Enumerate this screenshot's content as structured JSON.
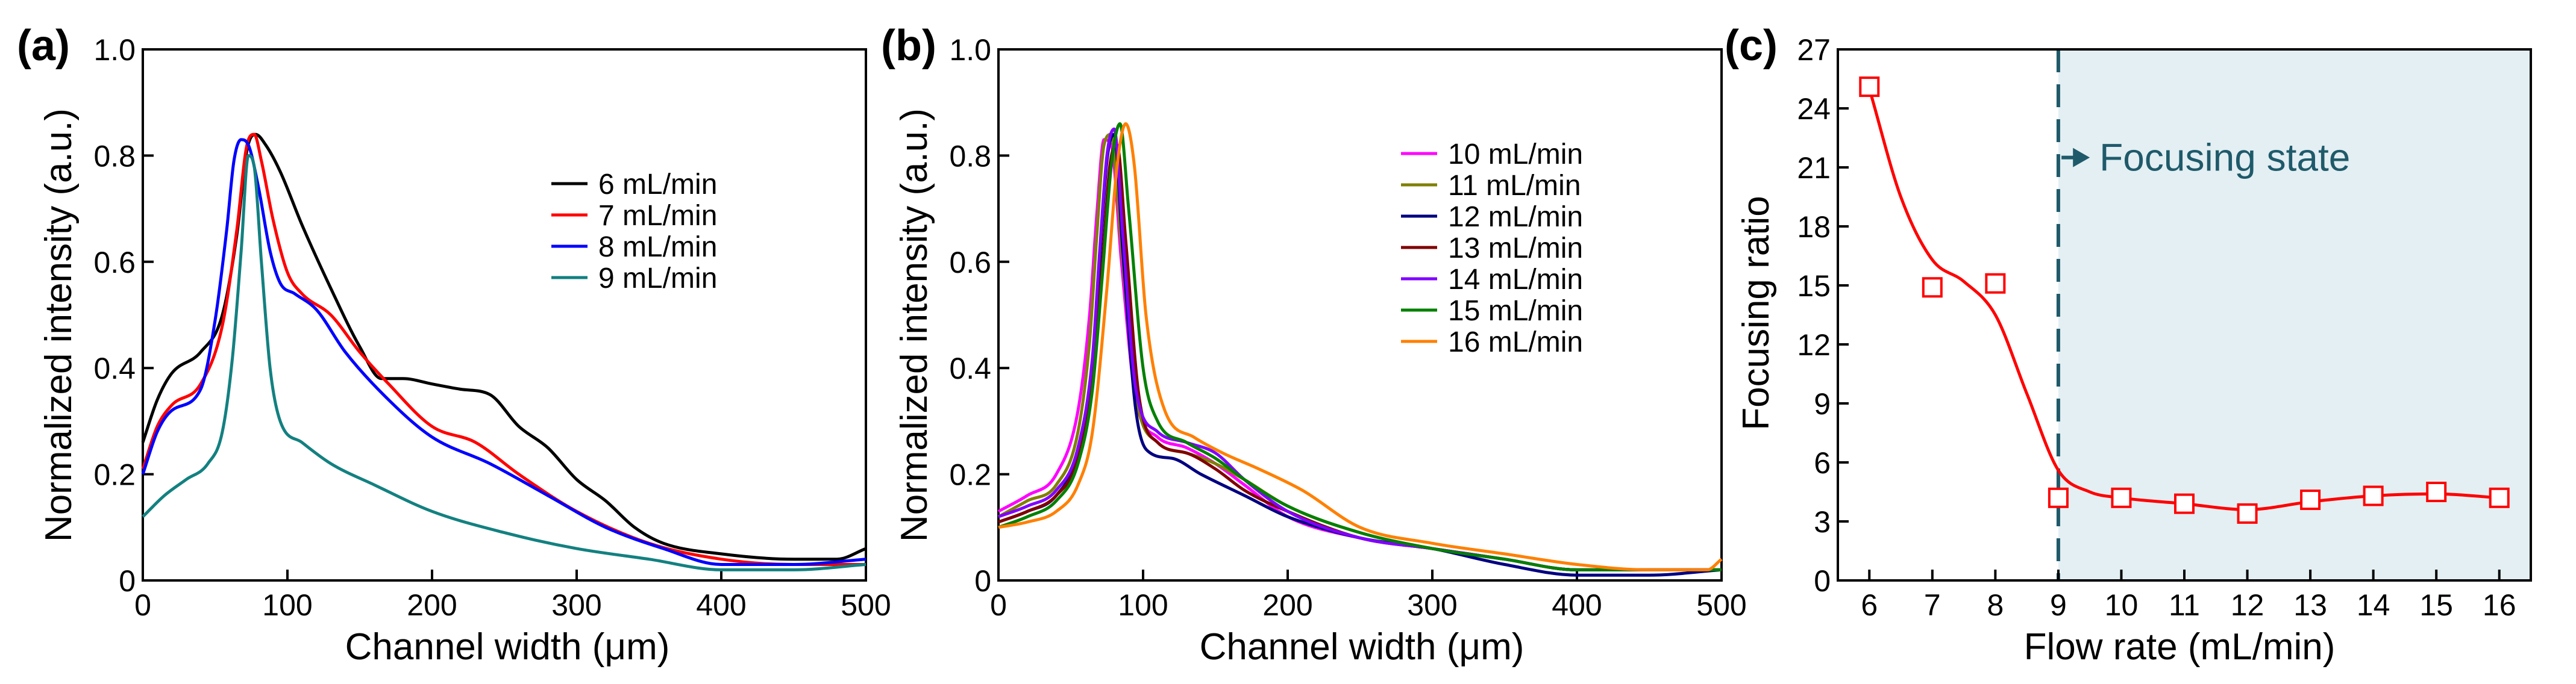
{
  "colors": {
    "focus_region": "#e3eff3",
    "dashed_line": "#1f5a6a",
    "annotation": "#1f5a6a"
  },
  "chart_data": [
    {
      "type": "line",
      "panel_label": "(a)",
      "xlabel": "Channel width (μm)",
      "ylabel": "Normalized intensity (a.u.)",
      "xlim": [
        0,
        500
      ],
      "ylim": [
        0,
        1.0
      ],
      "xticks": [
        0,
        100,
        200,
        300,
        400,
        500
      ],
      "yticks": [
        0,
        0.2,
        0.4,
        0.6,
        0.8,
        1.0
      ],
      "ytick_labels": [
        "0",
        "0.2",
        "0.4",
        "0.6",
        "0.8",
        "1.0"
      ],
      "legend_position": "top-right",
      "series": [
        {
          "name": "6 mL/min",
          "color": "#000000",
          "x": [
            0,
            10,
            20,
            40,
            55,
            65,
            72,
            78,
            85,
            95,
            110,
            130,
            150,
            165,
            180,
            200,
            220,
            240,
            260,
            280,
            300,
            320,
            340,
            360,
            400,
            450,
            480,
            500
          ],
          "y": [
            0.26,
            0.34,
            0.39,
            0.43,
            0.5,
            0.65,
            0.81,
            0.84,
            0.82,
            0.77,
            0.67,
            0.55,
            0.44,
            0.38,
            0.38,
            0.37,
            0.36,
            0.35,
            0.29,
            0.25,
            0.19,
            0.15,
            0.1,
            0.07,
            0.05,
            0.04,
            0.04,
            0.06
          ]
        },
        {
          "name": "7 mL/min",
          "color": "#ff0000",
          "x": [
            0,
            10,
            20,
            40,
            55,
            65,
            72,
            77,
            82,
            90,
            100,
            110,
            130,
            150,
            170,
            200,
            230,
            260,
            300,
            350,
            400,
            450,
            500
          ],
          "y": [
            0.21,
            0.29,
            0.33,
            0.37,
            0.48,
            0.66,
            0.82,
            0.84,
            0.79,
            0.68,
            0.58,
            0.54,
            0.5,
            0.43,
            0.37,
            0.29,
            0.26,
            0.2,
            0.13,
            0.07,
            0.04,
            0.03,
            0.03
          ]
        },
        {
          "name": "8 mL/min",
          "color": "#0000ff",
          "x": [
            0,
            10,
            20,
            40,
            50,
            58,
            63,
            68,
            73,
            80,
            88,
            95,
            105,
            120,
            140,
            170,
            200,
            240,
            280,
            320,
            360,
            400,
            450,
            500
          ],
          "y": [
            0.2,
            0.28,
            0.32,
            0.36,
            0.49,
            0.66,
            0.79,
            0.83,
            0.82,
            0.74,
            0.62,
            0.56,
            0.54,
            0.51,
            0.43,
            0.34,
            0.27,
            0.22,
            0.16,
            0.1,
            0.06,
            0.03,
            0.03,
            0.04
          ]
        },
        {
          "name": "9 mL/min",
          "color": "#138080",
          "x": [
            0,
            15,
            30,
            45,
            55,
            62,
            68,
            73,
            77,
            82,
            88,
            95,
            110,
            130,
            160,
            200,
            250,
            300,
            350,
            400,
            450,
            500
          ],
          "y": [
            0.12,
            0.16,
            0.19,
            0.22,
            0.28,
            0.42,
            0.62,
            0.8,
            0.78,
            0.6,
            0.4,
            0.3,
            0.26,
            0.22,
            0.18,
            0.13,
            0.09,
            0.06,
            0.04,
            0.02,
            0.02,
            0.03
          ]
        }
      ]
    },
    {
      "type": "line",
      "panel_label": "(b)",
      "xlabel": "Channel width (μm)",
      "ylabel": "Normalized intensity (a.u.)",
      "xlim": [
        0,
        500
      ],
      "ylim": [
        0,
        1.0
      ],
      "xticks": [
        0,
        100,
        200,
        300,
        400,
        500
      ],
      "yticks": [
        0,
        0.2,
        0.4,
        0.6,
        0.8,
        1.0
      ],
      "ytick_labels": [
        "0",
        "0.2",
        "0.4",
        "0.6",
        "0.8",
        "1.0"
      ],
      "legend_position": "top-right",
      "series": [
        {
          "name": "10 mL/min",
          "color": "#ff00ff",
          "x": [
            0,
            20,
            40,
            55,
            63,
            68,
            73,
            78,
            85,
            95,
            110,
            130,
            150,
            170,
            200,
            250,
            300,
            350,
            400,
            450,
            500
          ],
          "y": [
            0.13,
            0.16,
            0.2,
            0.32,
            0.5,
            0.69,
            0.83,
            0.82,
            0.6,
            0.34,
            0.27,
            0.25,
            0.22,
            0.18,
            0.12,
            0.08,
            0.06,
            0.04,
            0.02,
            0.02,
            0.02
          ]
        },
        {
          "name": "11 mL/min",
          "color": "#808000",
          "x": [
            0,
            20,
            40,
            55,
            63,
            68,
            73,
            78,
            85,
            95,
            110,
            130,
            150,
            170,
            200,
            250,
            300,
            350,
            400,
            450,
            500
          ],
          "y": [
            0.12,
            0.15,
            0.18,
            0.28,
            0.45,
            0.65,
            0.82,
            0.84,
            0.63,
            0.35,
            0.26,
            0.24,
            0.22,
            0.19,
            0.14,
            0.09,
            0.06,
            0.04,
            0.02,
            0.02,
            0.02
          ]
        },
        {
          "name": "12 mL/min",
          "color": "#000080",
          "x": [
            0,
            20,
            40,
            55,
            65,
            70,
            75,
            80,
            86,
            95,
            105,
            120,
            140,
            170,
            200,
            250,
            300,
            350,
            400,
            450,
            500
          ],
          "y": [
            0.11,
            0.13,
            0.16,
            0.24,
            0.4,
            0.6,
            0.79,
            0.84,
            0.62,
            0.32,
            0.24,
            0.23,
            0.2,
            0.16,
            0.12,
            0.08,
            0.06,
            0.03,
            0.01,
            0.01,
            0.02
          ]
        },
        {
          "name": "13 mL/min",
          "color": "#800000",
          "x": [
            0,
            20,
            40,
            55,
            65,
            72,
            77,
            82,
            88,
            97,
            110,
            130,
            150,
            170,
            200,
            250,
            300,
            350,
            400,
            450,
            500
          ],
          "y": [
            0.11,
            0.13,
            0.16,
            0.23,
            0.38,
            0.6,
            0.78,
            0.82,
            0.64,
            0.35,
            0.26,
            0.24,
            0.21,
            0.17,
            0.13,
            0.08,
            0.06,
            0.04,
            0.02,
            0.02,
            0.02
          ]
        },
        {
          "name": "14 mL/min",
          "color": "#8000ff",
          "x": [
            0,
            20,
            40,
            55,
            65,
            70,
            75,
            80,
            86,
            95,
            110,
            130,
            150,
            170,
            200,
            250,
            300,
            350,
            400,
            450,
            500
          ],
          "y": [
            0.12,
            0.14,
            0.17,
            0.25,
            0.42,
            0.62,
            0.8,
            0.85,
            0.65,
            0.36,
            0.28,
            0.26,
            0.24,
            0.19,
            0.13,
            0.08,
            0.06,
            0.04,
            0.02,
            0.02,
            0.02
          ]
        },
        {
          "name": "15 mL/min",
          "color": "#008000",
          "x": [
            0,
            20,
            40,
            55,
            65,
            72,
            78,
            84,
            90,
            100,
            110,
            130,
            150,
            170,
            200,
            250,
            300,
            350,
            400,
            450,
            500
          ],
          "y": [
            0.1,
            0.12,
            0.15,
            0.22,
            0.36,
            0.58,
            0.78,
            0.86,
            0.7,
            0.4,
            0.3,
            0.26,
            0.23,
            0.19,
            0.14,
            0.09,
            0.06,
            0.04,
            0.02,
            0.02,
            0.02
          ]
        },
        {
          "name": "16 mL/min",
          "color": "#ff8000",
          "x": [
            0,
            20,
            40,
            55,
            65,
            75,
            82,
            88,
            94,
            102,
            115,
            135,
            155,
            180,
            210,
            250,
            300,
            350,
            400,
            450,
            490,
            500
          ],
          "y": [
            0.1,
            0.11,
            0.13,
            0.18,
            0.28,
            0.55,
            0.78,
            0.86,
            0.78,
            0.5,
            0.32,
            0.27,
            0.24,
            0.21,
            0.17,
            0.1,
            0.07,
            0.05,
            0.03,
            0.02,
            0.02,
            0.04
          ]
        }
      ]
    },
    {
      "type": "scatter",
      "panel_label": "(c)",
      "xlabel": "Flow rate (mL/min)",
      "ylabel": "Focusing ratio",
      "xlim": [
        5.5,
        16.5
      ],
      "ylim": [
        0,
        27
      ],
      "xticks": [
        6,
        7,
        8,
        9,
        10,
        11,
        12,
        13,
        14,
        15,
        16
      ],
      "yticks": [
        0,
        3,
        6,
        9,
        12,
        15,
        18,
        21,
        24,
        27
      ],
      "series": [
        {
          "name": "Focusing ratio",
          "color": "#ff0000",
          "marker": "open-square",
          "x": [
            6,
            7,
            8,
            9,
            10,
            11,
            12,
            13,
            14,
            15,
            16
          ],
          "y": [
            25.1,
            14.9,
            15.1,
            4.2,
            4.2,
            3.9,
            3.4,
            4.1,
            4.3,
            4.5,
            4.2
          ]
        }
      ],
      "fit_curve": {
        "color": "#ff0000",
        "x": [
          6,
          6.5,
          7,
          7.5,
          8,
          8.5,
          9,
          9.5,
          10,
          11,
          12,
          13,
          14,
          15,
          16
        ],
        "y": [
          25.0,
          19.5,
          16.3,
          15.2,
          13.5,
          9.5,
          5.6,
          4.5,
          4.2,
          3.9,
          3.6,
          4.0,
          4.3,
          4.4,
          4.2
        ]
      },
      "threshold_x": 9,
      "shaded_region_x": [
        9,
        16.5
      ],
      "annotation": {
        "text": "Focusing state",
        "x": 9.05,
        "y": 21.5,
        "x_end": 9.5
      }
    }
  ]
}
